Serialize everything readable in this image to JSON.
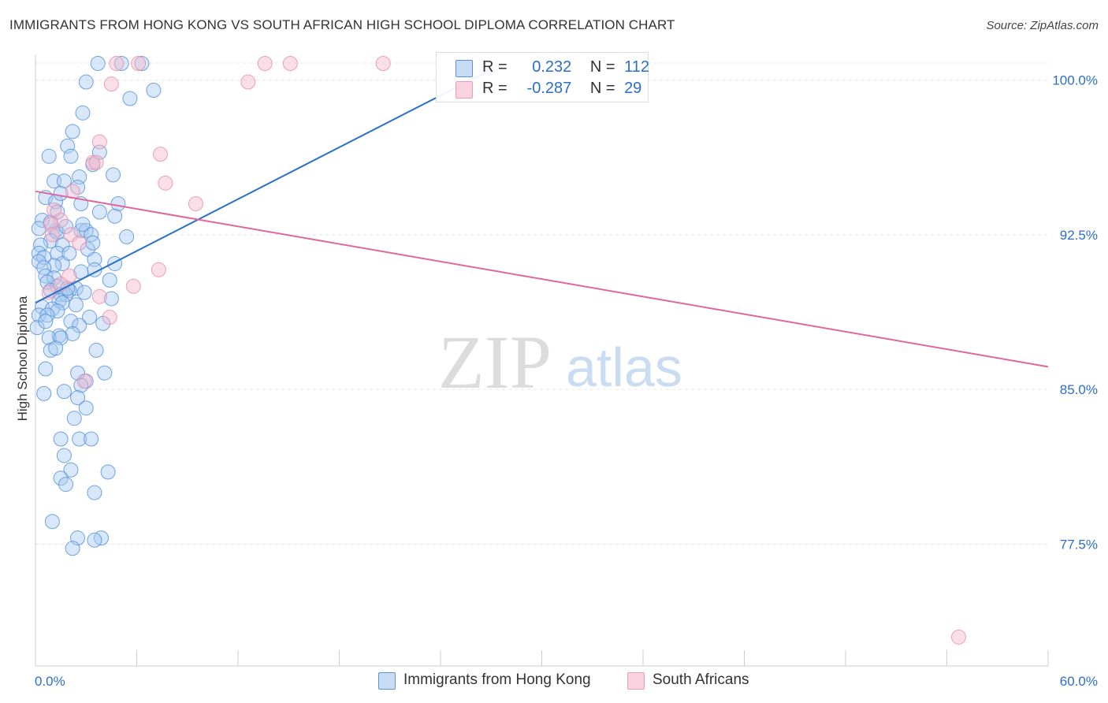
{
  "header": {
    "title": "IMMIGRANTS FROM HONG KONG VS SOUTH AFRICAN HIGH SCHOOL DIPLOMA CORRELATION CHART",
    "source": "Source: ZipAtlas.com"
  },
  "watermark": {
    "zip": "ZIP",
    "atlas": "atlas"
  },
  "colors": {
    "blue_fill": "#a9c9f2",
    "blue_stroke": "#4f8fd8",
    "blue_line": "#2a6fcc",
    "pink_fill": "#f5b9cc",
    "pink_stroke": "#e98aab",
    "pink_line": "#e0679a",
    "grid": "#e6e6e6",
    "tick_label": "#2a6fcc"
  },
  "legend_stats": {
    "r_label": "R =",
    "n_label": "N =",
    "rows": [
      {
        "r": "0.232",
        "n": "112"
      },
      {
        "r": "-0.287",
        "n": "29"
      }
    ]
  },
  "chart_data": {
    "type": "scatter",
    "title": "IMMIGRANTS FROM HONG KONG VS SOUTH AFRICAN HIGH SCHOOL DIPLOMA CORRELATION CHART",
    "xlabel": "",
    "ylabel": "High School Diploma",
    "xlim": [
      0,
      60
    ],
    "ylim": [
      71.6,
      101.2
    ],
    "x_tick_labels": [
      "0.0%",
      "60.0%"
    ],
    "y_ticks": [
      77.5,
      85.0,
      92.5,
      100.0
    ],
    "y_tick_labels": [
      "77.5%",
      "85.0%",
      "92.5%",
      "100.0%"
    ],
    "grid": true,
    "legend_position": "bottom-center",
    "series": [
      {
        "name": "Immigrants from Hong Kong",
        "r": 0.232,
        "n": 112,
        "trend": [
          [
            0,
            89.2
          ],
          [
            27,
            100.5
          ]
        ],
        "points": [
          [
            3.7,
            100.8
          ],
          [
            5.1,
            100.8
          ],
          [
            6.3,
            100.8
          ],
          [
            3.0,
            99.9
          ],
          [
            7.0,
            99.5
          ],
          [
            5.6,
            99.1
          ],
          [
            2.8,
            98.4
          ],
          [
            2.2,
            97.5
          ],
          [
            1.9,
            96.8
          ],
          [
            3.8,
            96.5
          ],
          [
            0.8,
            96.3
          ],
          [
            2.1,
            96.3
          ],
          [
            4.6,
            95.4
          ],
          [
            1.1,
            95.1
          ],
          [
            2.6,
            95.3
          ],
          [
            1.7,
            95.1
          ],
          [
            2.5,
            94.8
          ],
          [
            0.6,
            94.3
          ],
          [
            1.2,
            94.1
          ],
          [
            2.7,
            94.0
          ],
          [
            4.9,
            94.0
          ],
          [
            1.3,
            93.6
          ],
          [
            3.8,
            93.6
          ],
          [
            4.7,
            93.4
          ],
          [
            0.4,
            93.2
          ],
          [
            0.2,
            92.8
          ],
          [
            1.2,
            92.7
          ],
          [
            2.7,
            92.7
          ],
          [
            3.0,
            92.7
          ],
          [
            3.3,
            92.5
          ],
          [
            1.3,
            92.6
          ],
          [
            5.4,
            92.4
          ],
          [
            0.9,
            92.2
          ],
          [
            0.3,
            92.0
          ],
          [
            1.6,
            92.0
          ],
          [
            3.1,
            91.8
          ],
          [
            0.2,
            91.6
          ],
          [
            1.3,
            91.6
          ],
          [
            0.5,
            91.4
          ],
          [
            3.5,
            91.3
          ],
          [
            0.2,
            91.2
          ],
          [
            1.6,
            91.1
          ],
          [
            4.7,
            91.1
          ],
          [
            1.1,
            91.0
          ],
          [
            0.5,
            90.9
          ],
          [
            3.5,
            90.8
          ],
          [
            2.7,
            90.7
          ],
          [
            0.6,
            90.5
          ],
          [
            1.1,
            90.4
          ],
          [
            4.4,
            90.3
          ],
          [
            0.7,
            90.2
          ],
          [
            1.3,
            90.0
          ],
          [
            2.4,
            89.9
          ],
          [
            0.9,
            89.8
          ],
          [
            2.0,
            89.8
          ],
          [
            2.9,
            89.7
          ],
          [
            1.5,
            89.6
          ],
          [
            1.8,
            89.6
          ],
          [
            4.5,
            89.4
          ],
          [
            1.4,
            89.3
          ],
          [
            1.6,
            89.2
          ],
          [
            0.4,
            89.0
          ],
          [
            1.0,
            88.9
          ],
          [
            1.3,
            88.8
          ],
          [
            0.2,
            88.6
          ],
          [
            0.7,
            88.6
          ],
          [
            3.2,
            88.5
          ],
          [
            2.1,
            88.3
          ],
          [
            4.0,
            88.2
          ],
          [
            2.6,
            88.1
          ],
          [
            0.1,
            88.0
          ],
          [
            2.2,
            87.7
          ],
          [
            1.4,
            87.6
          ],
          [
            0.8,
            87.5
          ],
          [
            1.5,
            87.5
          ],
          [
            0.9,
            86.9
          ],
          [
            3.6,
            86.9
          ],
          [
            0.6,
            86.0
          ],
          [
            2.5,
            85.8
          ],
          [
            4.1,
            85.8
          ],
          [
            3.0,
            85.4
          ],
          [
            2.7,
            85.2
          ],
          [
            1.7,
            84.9
          ],
          [
            0.5,
            84.8
          ],
          [
            2.5,
            84.6
          ],
          [
            3.0,
            84.1
          ],
          [
            2.3,
            83.6
          ],
          [
            1.5,
            82.6
          ],
          [
            2.6,
            82.6
          ],
          [
            3.3,
            82.6
          ],
          [
            1.7,
            81.8
          ],
          [
            2.1,
            81.1
          ],
          [
            4.3,
            81.0
          ],
          [
            1.5,
            80.7
          ],
          [
            1.8,
            80.4
          ],
          [
            3.5,
            80.0
          ],
          [
            1.0,
            78.6
          ],
          [
            2.5,
            77.8
          ],
          [
            3.9,
            77.8
          ],
          [
            3.5,
            77.7
          ],
          [
            2.2,
            77.3
          ],
          [
            1.9,
            89.9
          ],
          [
            2.4,
            89.1
          ],
          [
            1.8,
            92.9
          ],
          [
            3.4,
            95.9
          ],
          [
            0.6,
            88.3
          ],
          [
            1.2,
            87.0
          ],
          [
            2.0,
            91.6
          ],
          [
            0.9,
            93.1
          ],
          [
            2.8,
            93.0
          ],
          [
            3.4,
            92.1
          ],
          [
            1.5,
            94.5
          ]
        ]
      },
      {
        "name": "South Africans",
        "r": -0.287,
        "n": 29,
        "trend": [
          [
            0,
            94.6
          ],
          [
            60,
            86.1
          ]
        ],
        "points": [
          [
            4.8,
            100.8
          ],
          [
            6.1,
            100.8
          ],
          [
            13.6,
            100.8
          ],
          [
            15.1,
            100.8
          ],
          [
            20.6,
            100.8
          ],
          [
            12.6,
            99.9
          ],
          [
            4.5,
            99.8
          ],
          [
            3.8,
            97.0
          ],
          [
            7.4,
            96.4
          ],
          [
            3.4,
            96.0
          ],
          [
            3.6,
            96.0
          ],
          [
            7.7,
            95.0
          ],
          [
            2.2,
            94.6
          ],
          [
            9.5,
            94.0
          ],
          [
            1.1,
            93.7
          ],
          [
            1.5,
            93.2
          ],
          [
            0.9,
            93.0
          ],
          [
            1.0,
            92.5
          ],
          [
            2.1,
            92.5
          ],
          [
            2.6,
            92.1
          ],
          [
            7.3,
            90.8
          ],
          [
            2.0,
            90.5
          ],
          [
            5.8,
            90.0
          ],
          [
            3.8,
            89.5
          ],
          [
            4.4,
            88.5
          ],
          [
            2.9,
            85.4
          ],
          [
            0.8,
            89.7
          ],
          [
            1.5,
            90.1
          ],
          [
            54.7,
            73.0
          ]
        ]
      }
    ]
  },
  "bottom_legend": [
    {
      "label": "Immigrants from Hong Kong"
    },
    {
      "label": "South Africans"
    }
  ]
}
